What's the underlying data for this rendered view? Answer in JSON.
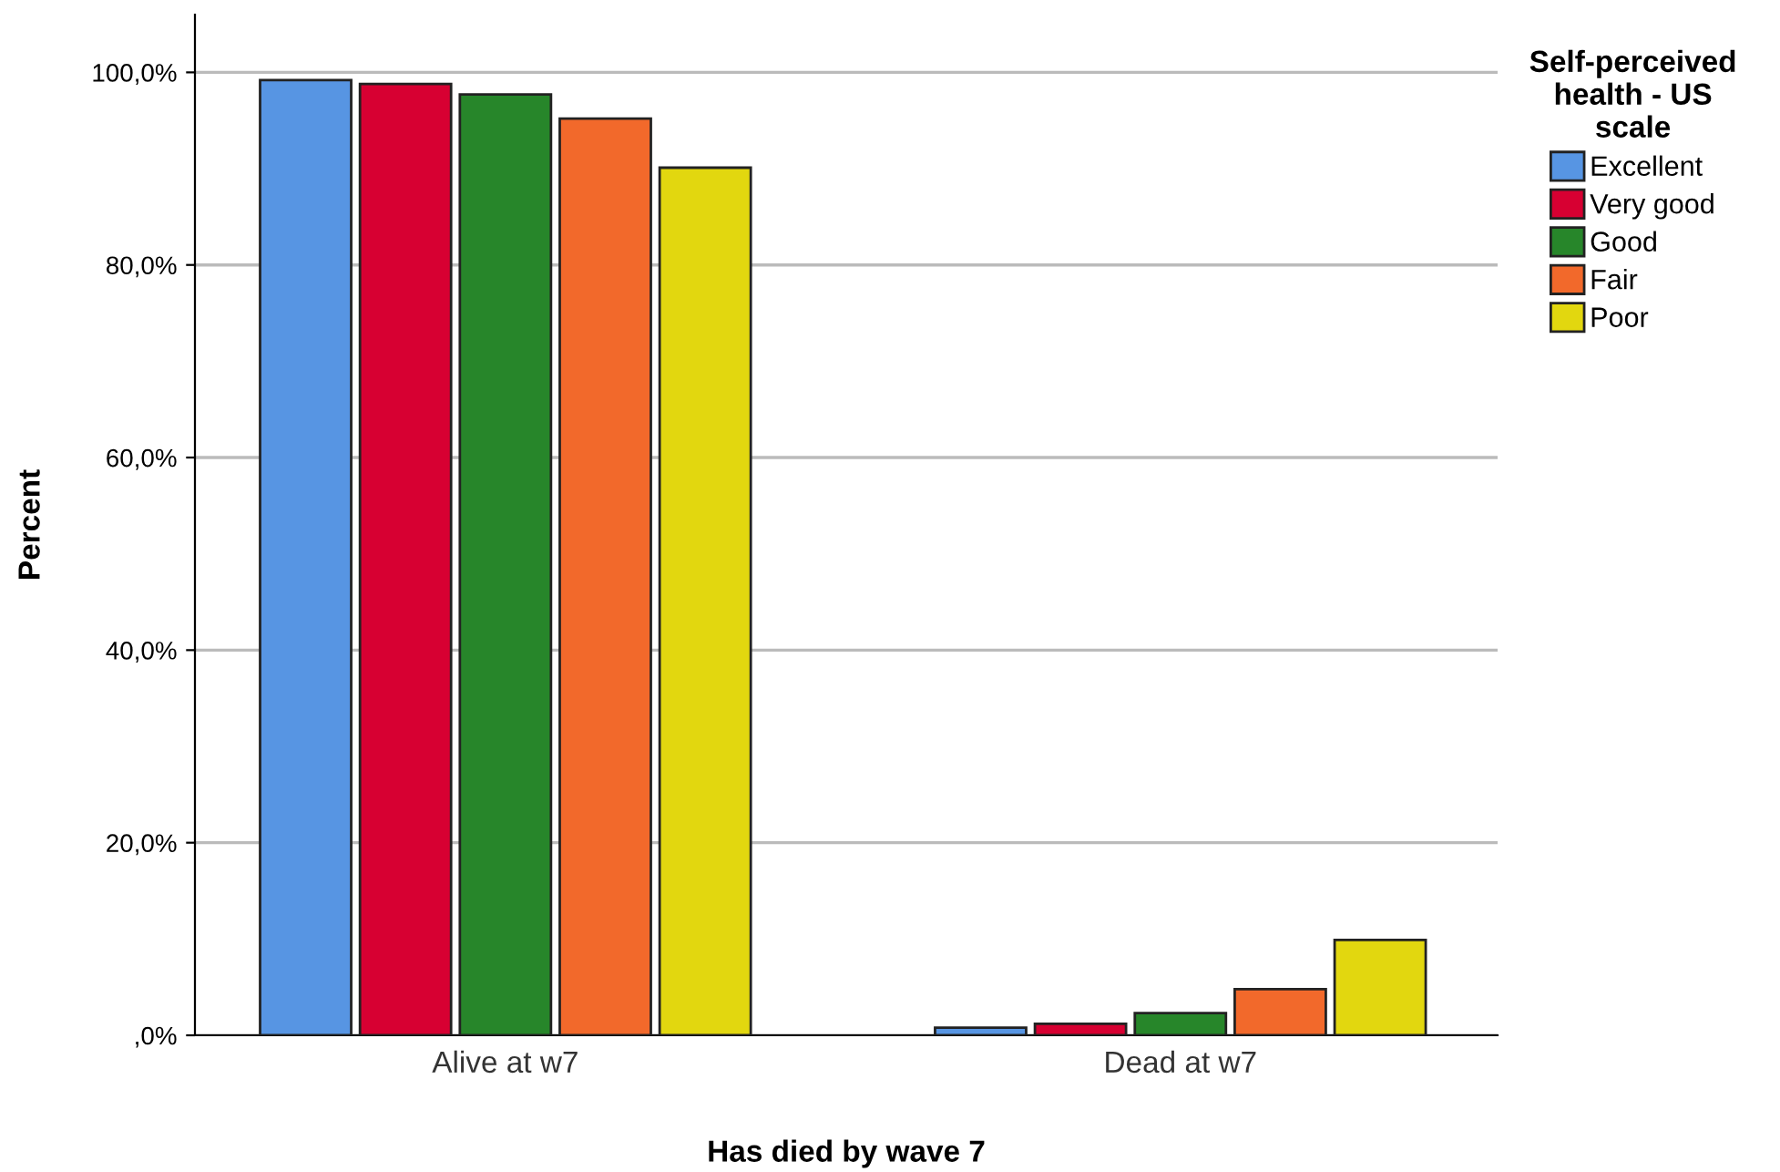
{
  "chart_data": {
    "type": "bar",
    "xlabel": "Has died by wave 7",
    "ylabel": "Percent",
    "legend_title": "Self-perceived\nhealth - US\nscale",
    "categories": [
      "Alive at w7",
      "Dead at w7"
    ],
    "series": [
      {
        "name": "Excellent",
        "color": "#5795e3",
        "values": [
          99.2,
          0.8
        ]
      },
      {
        "name": "Very good",
        "color": "#d70032",
        "values": [
          98.8,
          1.2
        ]
      },
      {
        "name": "Good",
        "color": "#27862a",
        "values": [
          97.7,
          2.3
        ]
      },
      {
        "name": "Fair",
        "color": "#f2692b",
        "values": [
          95.2,
          4.8
        ]
      },
      {
        "name": "Poor",
        "color": "#e2d70f",
        "values": [
          90.1,
          9.9
        ]
      }
    ],
    "ylim": [
      0,
      106
    ],
    "yticks": [
      {
        "value": 0,
        "label": ",0%"
      },
      {
        "value": 20,
        "label": "20,0%"
      },
      {
        "value": 40,
        "label": "40,0%"
      },
      {
        "value": 60,
        "label": "60,0%"
      },
      {
        "value": 80,
        "label": "80,0%"
      },
      {
        "value": 100,
        "label": "100,0%"
      }
    ],
    "grid": "y",
    "legend": "right"
  }
}
